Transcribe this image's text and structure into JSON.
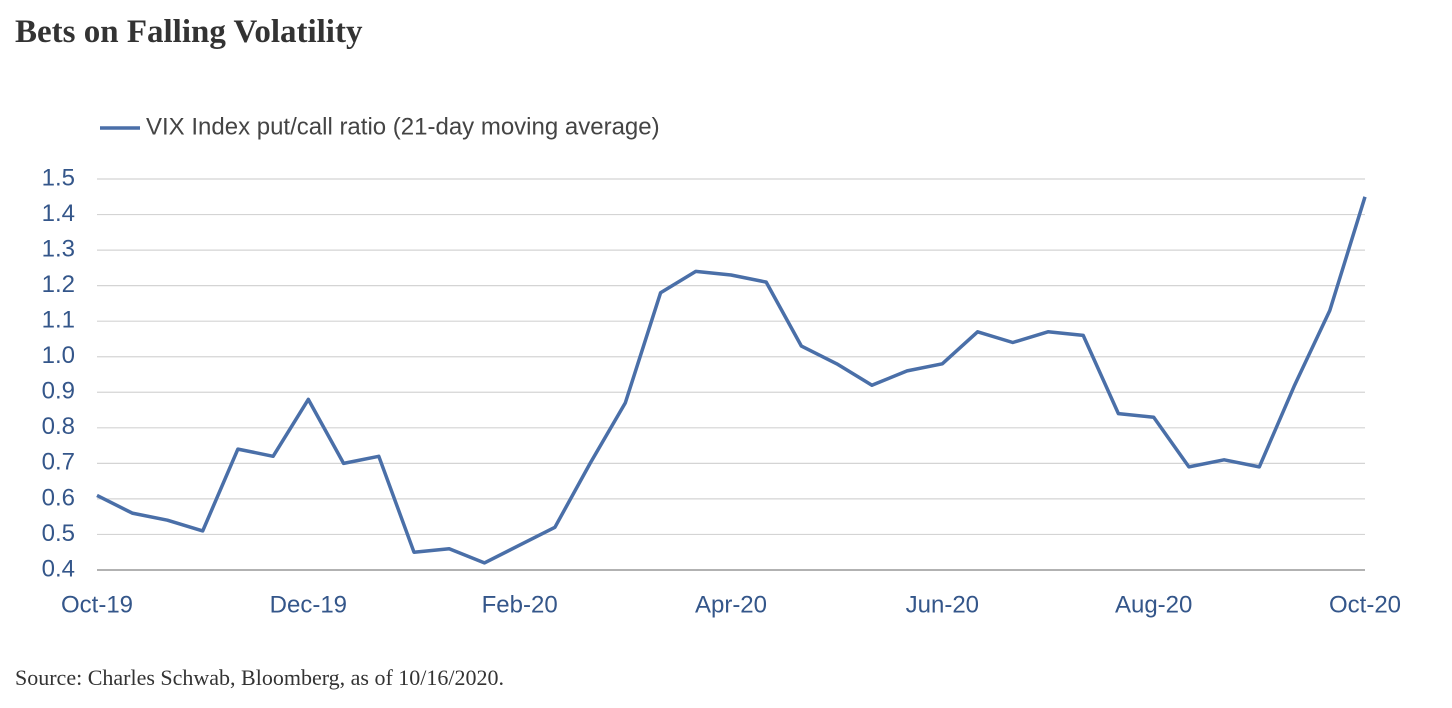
{
  "chart_data": {
    "type": "line",
    "title": "Bets on Falling Volatility",
    "source": "Source: Charles Schwab, Bloomberg, as of 10/16/2020.",
    "categories": [
      "Oct-19",
      null,
      null,
      null,
      null,
      null,
      "Dec-19",
      null,
      null,
      null,
      null,
      null,
      "Feb-20",
      null,
      null,
      null,
      null,
      null,
      "Apr-20",
      null,
      null,
      null,
      null,
      null,
      "Jun-20",
      null,
      null,
      null,
      null,
      null,
      "Aug-20",
      null,
      null,
      null,
      null,
      null,
      "Oct-20"
    ],
    "series": [
      {
        "name": "VIX Index put/call ratio (21-day moving average)",
        "color": "#4a6fa8",
        "values": [
          0.61,
          0.56,
          0.54,
          0.51,
          0.74,
          0.72,
          0.88,
          0.7,
          0.72,
          0.45,
          0.46,
          0.42,
          0.47,
          0.52,
          0.7,
          0.87,
          1.18,
          1.24,
          1.23,
          1.21,
          1.03,
          0.98,
          0.92,
          0.96,
          0.98,
          1.07,
          1.04,
          1.07,
          1.06,
          0.84,
          0.83,
          0.69,
          0.71,
          0.69,
          0.92,
          1.13,
          1.45
        ]
      }
    ],
    "ylim": [
      0.4,
      1.5
    ],
    "yticks": [
      0.4,
      0.5,
      0.6,
      0.7,
      0.8,
      0.9,
      {
        "value": 1.0,
        "label": "1.0"
      },
      1.1,
      1.2,
      1.3,
      1.4,
      1.5
    ],
    "grid": true,
    "legend": "top-left"
  }
}
